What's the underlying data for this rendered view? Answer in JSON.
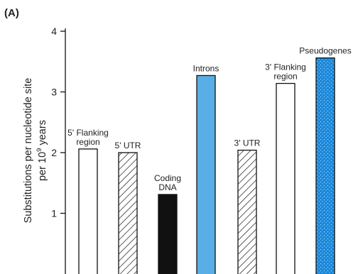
{
  "panel_label": "(A)",
  "colors": {
    "white_fill": "#ffffff",
    "stroke": "#111111",
    "coding_fill": "#111111",
    "introns_fill": "#5aaee6",
    "pseudogenes_fill": "#1a86d8",
    "hatch": "#333333"
  },
  "chart_data": {
    "type": "bar",
    "title": "",
    "xlabel": "",
    "ylabel": "Substitutions per nucleotide site per 10^9 years",
    "ylabel_lines": [
      "Substitutions per nucleotide site",
      "per 10",
      "9",
      " years"
    ],
    "ylim": [
      0,
      4
    ],
    "yticks": [
      1,
      2,
      3,
      4
    ],
    "ytick_labels": [
      "1",
      "2",
      "3",
      "4"
    ],
    "grid": false,
    "categories": [
      "5' Flanking region",
      "5' UTR",
      "Coding DNA",
      "Introns",
      "3' UTR",
      "3' Flanking region",
      "Pseudogenes"
    ],
    "category_label_lines": [
      [
        "5' Flanking",
        "region"
      ],
      [
        "5' UTR"
      ],
      [
        "Coding",
        "DNA"
      ],
      [
        "Introns"
      ],
      [
        "3' UTR"
      ],
      [
        "3' Flanking",
        "region"
      ],
      [
        "Pseudogenes"
      ]
    ],
    "values": [
      2.06,
      2.0,
      1.31,
      3.27,
      2.04,
      3.14,
      3.56
    ],
    "styles": [
      "open",
      "hatched",
      "solid-black",
      "solid-blue",
      "hatched",
      "open",
      "dotted-blue"
    ]
  }
}
